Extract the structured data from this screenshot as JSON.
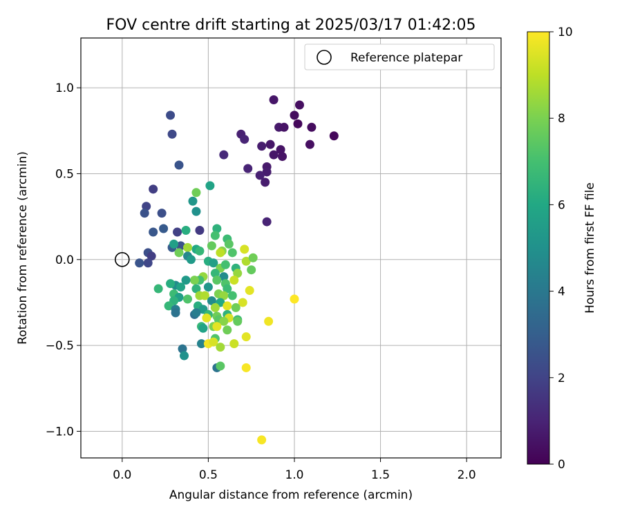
{
  "chart_data": {
    "type": "scatter",
    "title": "FOV centre drift starting at 2025/03/17 01:42:05",
    "xlabel": "Angular distance from reference (arcmin)",
    "ylabel": "Rotation from reference (arcmin)",
    "xlim": [
      -0.24,
      2.2
    ],
    "ylim": [
      -1.155,
      1.29
    ],
    "xticks": [
      0.0,
      0.5,
      1.0,
      1.5,
      2.0
    ],
    "xtick_labels": [
      "0.0",
      "0.5",
      "1.0",
      "1.5",
      "2.0"
    ],
    "yticks": [
      -1.0,
      -0.5,
      0.0,
      0.5,
      1.0
    ],
    "ytick_labels": [
      "−1.0",
      "−0.5",
      "0.0",
      "0.5",
      "1.0"
    ],
    "grid": true,
    "legend": {
      "location": "top-right",
      "entries": [
        "Reference platepar"
      ]
    },
    "reference_point": {
      "x": 0.0,
      "y": 0.0,
      "label": "Reference platepar"
    },
    "colorbar": {
      "label": "Hours from first FF file",
      "colormap": "viridis",
      "range": [
        0,
        10
      ],
      "ticks": [
        0,
        2,
        4,
        6,
        8,
        10
      ],
      "tick_labels": [
        "0",
        "2",
        "4",
        "6",
        "8",
        "10"
      ]
    },
    "points": [
      {
        "x": 0.88,
        "y": 0.93,
        "c": 0.6
      },
      {
        "x": 1.03,
        "y": 0.9,
        "c": 0.4
      },
      {
        "x": 1.0,
        "y": 0.84,
        "c": 0.3
      },
      {
        "x": 1.02,
        "y": 0.79,
        "c": 0.2
      },
      {
        "x": 1.1,
        "y": 0.77,
        "c": 0.3
      },
      {
        "x": 0.91,
        "y": 0.77,
        "c": 0.7
      },
      {
        "x": 0.94,
        "y": 0.77,
        "c": 0.5
      },
      {
        "x": 1.23,
        "y": 0.72,
        "c": 0.2
      },
      {
        "x": 0.69,
        "y": 0.73,
        "c": 0.9
      },
      {
        "x": 0.71,
        "y": 0.7,
        "c": 1.0
      },
      {
        "x": 1.09,
        "y": 0.67,
        "c": 0.4
      },
      {
        "x": 0.86,
        "y": 0.67,
        "c": 0.6
      },
      {
        "x": 0.81,
        "y": 0.66,
        "c": 0.8
      },
      {
        "x": 0.92,
        "y": 0.64,
        "c": 0.5
      },
      {
        "x": 0.88,
        "y": 0.61,
        "c": 0.6
      },
      {
        "x": 0.93,
        "y": 0.6,
        "c": 0.5
      },
      {
        "x": 0.59,
        "y": 0.61,
        "c": 1.2
      },
      {
        "x": 0.73,
        "y": 0.53,
        "c": 1.0
      },
      {
        "x": 0.84,
        "y": 0.54,
        "c": 0.7
      },
      {
        "x": 0.84,
        "y": 0.51,
        "c": 0.8
      },
      {
        "x": 0.8,
        "y": 0.49,
        "c": 0.9
      },
      {
        "x": 0.83,
        "y": 0.45,
        "c": 0.8
      },
      {
        "x": 0.84,
        "y": 0.22,
        "c": 1.0
      },
      {
        "x": 0.28,
        "y": 0.84,
        "c": 2.3
      },
      {
        "x": 0.29,
        "y": 0.73,
        "c": 2.2
      },
      {
        "x": 0.33,
        "y": 0.55,
        "c": 2.6
      },
      {
        "x": 0.18,
        "y": 0.41,
        "c": 1.8
      },
      {
        "x": 0.14,
        "y": 0.31,
        "c": 2.0
      },
      {
        "x": 0.23,
        "y": 0.27,
        "c": 2.4
      },
      {
        "x": 0.13,
        "y": 0.27,
        "c": 2.5
      },
      {
        "x": 0.24,
        "y": 0.18,
        "c": 2.8
      },
      {
        "x": 0.18,
        "y": 0.16,
        "c": 2.7
      },
      {
        "x": 0.32,
        "y": 0.16,
        "c": 1.9
      },
      {
        "x": 0.45,
        "y": 0.17,
        "c": 1.7
      },
      {
        "x": 0.15,
        "y": 0.04,
        "c": 2.4
      },
      {
        "x": 0.17,
        "y": 0.02,
        "c": 1.8
      },
      {
        "x": 0.15,
        "y": -0.02,
        "c": 2.1
      },
      {
        "x": 0.1,
        "y": -0.02,
        "c": 2.6
      },
      {
        "x": 0.29,
        "y": 0.07,
        "c": 2.8
      },
      {
        "x": 0.34,
        "y": 0.08,
        "c": 2.5
      },
      {
        "x": 0.43,
        "y": 0.39,
        "c": 7.8
      },
      {
        "x": 0.51,
        "y": 0.43,
        "c": 5.8
      },
      {
        "x": 0.41,
        "y": 0.34,
        "c": 5.2
      },
      {
        "x": 0.43,
        "y": 0.28,
        "c": 5.0
      },
      {
        "x": 0.37,
        "y": 0.17,
        "c": 6.2
      },
      {
        "x": 0.55,
        "y": 0.18,
        "c": 6.4
      },
      {
        "x": 0.54,
        "y": 0.14,
        "c": 7.0
      },
      {
        "x": 0.61,
        "y": 0.12,
        "c": 6.8
      },
      {
        "x": 0.62,
        "y": 0.09,
        "c": 7.4
      },
      {
        "x": 0.3,
        "y": 0.09,
        "c": 5.6
      },
      {
        "x": 0.43,
        "y": 0.06,
        "c": 6.0
      },
      {
        "x": 0.38,
        "y": 0.07,
        "c": 8.6
      },
      {
        "x": 0.45,
        "y": 0.05,
        "c": 6.6
      },
      {
        "x": 0.52,
        "y": 0.08,
        "c": 7.6
      },
      {
        "x": 0.58,
        "y": 0.05,
        "c": 8.2
      },
      {
        "x": 0.57,
        "y": 0.04,
        "c": 9.0
      },
      {
        "x": 0.64,
        "y": 0.04,
        "c": 7.2
      },
      {
        "x": 0.71,
        "y": 0.06,
        "c": 9.4
      },
      {
        "x": 0.33,
        "y": 0.04,
        "c": 7.8
      },
      {
        "x": 0.38,
        "y": 0.02,
        "c": 4.6
      },
      {
        "x": 0.4,
        "y": 0.0,
        "c": 5.4
      },
      {
        "x": 0.5,
        "y": -0.01,
        "c": 6.2
      },
      {
        "x": 0.53,
        "y": -0.02,
        "c": 5.6
      },
      {
        "x": 0.57,
        "y": -0.05,
        "c": 8.0
      },
      {
        "x": 0.6,
        "y": -0.03,
        "c": 7.0
      },
      {
        "x": 0.66,
        "y": -0.05,
        "c": 6.4
      },
      {
        "x": 0.72,
        "y": -0.01,
        "c": 8.8
      },
      {
        "x": 0.76,
        "y": 0.01,
        "c": 7.8
      },
      {
        "x": 0.75,
        "y": -0.06,
        "c": 7.6
      },
      {
        "x": 0.67,
        "y": -0.08,
        "c": 8.4
      },
      {
        "x": 0.65,
        "y": -0.12,
        "c": 9.2
      },
      {
        "x": 0.59,
        "y": -0.1,
        "c": 4.8
      },
      {
        "x": 0.54,
        "y": -0.08,
        "c": 6.6
      },
      {
        "x": 0.55,
        "y": -0.12,
        "c": 7.4
      },
      {
        "x": 0.6,
        "y": -0.14,
        "c": 7.2
      },
      {
        "x": 0.47,
        "y": -0.1,
        "c": 8.4
      },
      {
        "x": 0.45,
        "y": -0.12,
        "c": 7.0
      },
      {
        "x": 0.42,
        "y": -0.12,
        "c": 8.0
      },
      {
        "x": 0.37,
        "y": -0.12,
        "c": 5.4
      },
      {
        "x": 0.31,
        "y": -0.15,
        "c": 4.8
      },
      {
        "x": 0.28,
        "y": -0.14,
        "c": 6.2
      },
      {
        "x": 0.21,
        "y": -0.17,
        "c": 6.6
      },
      {
        "x": 0.34,
        "y": -0.16,
        "c": 5.8
      },
      {
        "x": 0.43,
        "y": -0.17,
        "c": 6.4
      },
      {
        "x": 0.5,
        "y": -0.16,
        "c": 5.2
      },
      {
        "x": 0.61,
        "y": -0.17,
        "c": 6.8
      },
      {
        "x": 0.74,
        "y": -0.18,
        "c": 9.6
      },
      {
        "x": 0.3,
        "y": -0.2,
        "c": 6.8
      },
      {
        "x": 0.33,
        "y": -0.22,
        "c": 5.6
      },
      {
        "x": 0.45,
        "y": -0.21,
        "c": 8.6
      },
      {
        "x": 0.48,
        "y": -0.21,
        "c": 8.8
      },
      {
        "x": 0.56,
        "y": -0.2,
        "c": 8.0
      },
      {
        "x": 0.59,
        "y": -0.21,
        "c": 8.4
      },
      {
        "x": 0.64,
        "y": -0.21,
        "c": 7.0
      },
      {
        "x": 0.3,
        "y": -0.24,
        "c": 6.4
      },
      {
        "x": 0.38,
        "y": -0.23,
        "c": 7.2
      },
      {
        "x": 0.52,
        "y": -0.24,
        "c": 4.8
      },
      {
        "x": 0.57,
        "y": -0.25,
        "c": 6.0
      },
      {
        "x": 0.61,
        "y": -0.27,
        "c": 9.6
      },
      {
        "x": 0.7,
        "y": -0.25,
        "c": 9.4
      },
      {
        "x": 0.27,
        "y": -0.27,
        "c": 6.6
      },
      {
        "x": 0.31,
        "y": -0.29,
        "c": 4.2
      },
      {
        "x": 0.44,
        "y": -0.27,
        "c": 6.2
      },
      {
        "x": 0.47,
        "y": -0.29,
        "c": 5.4
      },
      {
        "x": 0.54,
        "y": -0.28,
        "c": 8.6
      },
      {
        "x": 0.66,
        "y": -0.28,
        "c": 7.8
      },
      {
        "x": 0.31,
        "y": -0.31,
        "c": 3.8
      },
      {
        "x": 0.42,
        "y": -0.32,
        "c": 3.6
      },
      {
        "x": 0.43,
        "y": -0.31,
        "c": 4.2
      },
      {
        "x": 0.5,
        "y": -0.32,
        "c": 6.6
      },
      {
        "x": 0.55,
        "y": -0.33,
        "c": 7.8
      },
      {
        "x": 0.61,
        "y": -0.32,
        "c": 6.4
      },
      {
        "x": 0.49,
        "y": -0.34,
        "c": 9.6
      },
      {
        "x": 0.56,
        "y": -0.35,
        "c": 7.4
      },
      {
        "x": 0.62,
        "y": -0.34,
        "c": 9.4
      },
      {
        "x": 0.59,
        "y": -0.36,
        "c": 8.2
      },
      {
        "x": 0.67,
        "y": -0.35,
        "c": 6.8
      },
      {
        "x": 0.67,
        "y": -0.36,
        "c": 7.6
      },
      {
        "x": 0.85,
        "y": -0.36,
        "c": 9.8
      },
      {
        "x": 0.46,
        "y": -0.39,
        "c": 6.6
      },
      {
        "x": 0.47,
        "y": -0.4,
        "c": 5.8
      },
      {
        "x": 0.53,
        "y": -0.39,
        "c": 8.0
      },
      {
        "x": 0.55,
        "y": -0.39,
        "c": 9.6
      },
      {
        "x": 0.61,
        "y": -0.41,
        "c": 7.8
      },
      {
        "x": 0.54,
        "y": -0.46,
        "c": 7.2
      },
      {
        "x": 0.72,
        "y": -0.45,
        "c": 9.6
      },
      {
        "x": 0.46,
        "y": -0.49,
        "c": 4.4
      },
      {
        "x": 0.5,
        "y": -0.49,
        "c": 9.8
      },
      {
        "x": 0.53,
        "y": -0.48,
        "c": 9.4
      },
      {
        "x": 0.65,
        "y": -0.49,
        "c": 9.2
      },
      {
        "x": 0.57,
        "y": -0.51,
        "c": 8.6
      },
      {
        "x": 0.35,
        "y": -0.52,
        "c": 3.8
      },
      {
        "x": 0.36,
        "y": -0.56,
        "c": 5.0
      },
      {
        "x": 0.55,
        "y": -0.63,
        "c": 3.8
      },
      {
        "x": 0.57,
        "y": -0.62,
        "c": 7.4
      },
      {
        "x": 0.72,
        "y": -0.63,
        "c": 9.9
      },
      {
        "x": 0.81,
        "y": -1.05,
        "c": 9.9
      },
      {
        "x": 1.0,
        "y": -0.23,
        "c": 10.0
      }
    ]
  }
}
